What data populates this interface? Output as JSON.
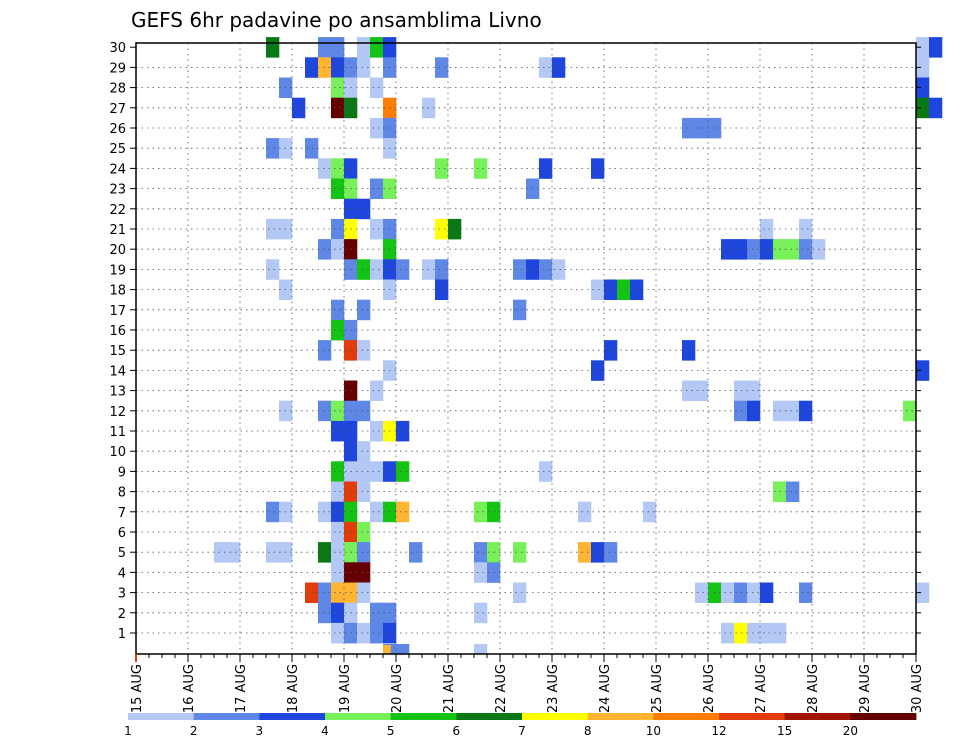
{
  "chart_data": {
    "type": "heatmap",
    "title": "GEFS 6hr padavine po ansamblima Livno",
    "xlabel": "",
    "ylabel": "",
    "x_ticks": [
      "15 AUG",
      "16 AUG",
      "17 AUG",
      "18 AUG",
      "19 AUG",
      "20 AUG",
      "21 AUG",
      "22 AUG",
      "23 AUG",
      "24 AUG",
      "25 AUG",
      "26 AUG",
      "27 AUG",
      "28 AUG",
      "29 AUG",
      "30 AUG"
    ],
    "y_ticks": [
      1,
      2,
      3,
      4,
      5,
      6,
      7,
      8,
      9,
      10,
      11,
      12,
      13,
      14,
      15,
      16,
      17,
      18,
      19,
      20,
      21,
      22,
      23,
      24,
      25,
      26,
      27,
      28,
      29,
      30
    ],
    "xlim": [
      "15 AUG",
      "30 AUG"
    ],
    "ylim": [
      0,
      30
    ],
    "grid": true,
    "legend": {
      "placement": "bottom",
      "labels": [
        "1",
        "2",
        "3",
        "4",
        "5",
        "6",
        "7",
        "8",
        "10",
        "12",
        "15",
        "20"
      ],
      "colors": [
        "#b4c8f5",
        "#5f87e6",
        "#1e46dc",
        "#78f05a",
        "#14c314",
        "#0a7814",
        "#ffff00",
        "#ffb432",
        "#ff7d00",
        "#e13c0a",
        "#a01400",
        "#640000"
      ]
    },
    "value_unit": "color class index 0-11 (1,2,3,4,5,6,7,8,10,12,15,20+ mm)",
    "time_step_hours": 6,
    "cells": [
      [
        30,
        "17 AUG 12Z",
        5
      ],
      [
        30,
        "18 AUG 12Z",
        1
      ],
      [
        30,
        "18 AUG 18Z",
        1
      ],
      [
        30,
        "19 AUG 06Z",
        0
      ],
      [
        30,
        "19 AUG 12Z",
        4
      ],
      [
        30,
        "19 AUG 18Z",
        2
      ],
      [
        30,
        "30 AUG 00Z",
        0
      ],
      [
        30,
        "30 AUG 06Z",
        2
      ],
      [
        29,
        "18 AUG 06Z",
        2
      ],
      [
        29,
        "18 AUG 12Z",
        7
      ],
      [
        29,
        "18 AUG 18Z",
        2
      ],
      [
        29,
        "19 AUG 00Z",
        1
      ],
      [
        29,
        "19 AUG 06Z",
        0
      ],
      [
        29,
        "19 AUG 18Z",
        1
      ],
      [
        29,
        "20 AUG 18Z",
        1
      ],
      [
        29,
        "22 AUG 18Z",
        0
      ],
      [
        29,
        "23 AUG 00Z",
        2
      ],
      [
        29,
        "30 AUG 00Z",
        0
      ],
      [
        28,
        "17 AUG 18Z",
        1
      ],
      [
        28,
        "18 AUG 18Z",
        3
      ],
      [
        28,
        "19 AUG 00Z",
        0
      ],
      [
        28,
        "19 AUG 12Z",
        0
      ],
      [
        28,
        "30 AUG 00Z",
        2
      ],
      [
        27,
        "18 AUG 00Z",
        2
      ],
      [
        27,
        "18 AUG 18Z",
        11
      ],
      [
        27,
        "19 AUG 00Z",
        5
      ],
      [
        27,
        "19 AUG 18Z",
        8
      ],
      [
        27,
        "20 AUG 12Z",
        0
      ],
      [
        27,
        "30 AUG 00Z",
        5
      ],
      [
        27,
        "30 AUG 06Z",
        2
      ],
      [
        26,
        "19 AUG 12Z",
        0
      ],
      [
        26,
        "19 AUG 18Z",
        1
      ],
      [
        26,
        "25 AUG 12Z",
        1
      ],
      [
        26,
        "25 AUG 18Z",
        1
      ],
      [
        26,
        "26 AUG 00Z",
        1
      ],
      [
        25,
        "17 AUG 12Z",
        1
      ],
      [
        25,
        "17 AUG 18Z",
        0
      ],
      [
        25,
        "18 AUG 06Z",
        1
      ],
      [
        25,
        "19 AUG 18Z",
        0
      ],
      [
        24,
        "18 AUG 12Z",
        0
      ],
      [
        24,
        "18 AUG 18Z",
        3
      ],
      [
        24,
        "19 AUG 00Z",
        2
      ],
      [
        24,
        "20 AUG 18Z",
        3
      ],
      [
        24,
        "21 AUG 12Z",
        3
      ],
      [
        24,
        "22 AUG 18Z",
        2
      ],
      [
        24,
        "23 AUG 18Z",
        2
      ],
      [
        23,
        "18 AUG 18Z",
        4
      ],
      [
        23,
        "19 AUG 00Z",
        3
      ],
      [
        23,
        "19 AUG 12Z",
        1
      ],
      [
        23,
        "19 AUG 18Z",
        3
      ],
      [
        23,
        "22 AUG 12Z",
        1
      ],
      [
        22,
        "19 AUG 00Z",
        2
      ],
      [
        22,
        "19 AUG 06Z",
        2
      ],
      [
        21,
        "17 AUG 12Z",
        0
      ],
      [
        21,
        "17 AUG 18Z",
        0
      ],
      [
        21,
        "18 AUG 18Z",
        1
      ],
      [
        21,
        "19 AUG 00Z",
        6
      ],
      [
        21,
        "19 AUG 12Z",
        0
      ],
      [
        21,
        "19 AUG 18Z",
        1
      ],
      [
        21,
        "20 AUG 18Z",
        6
      ],
      [
        21,
        "21 AUG 00Z",
        5
      ],
      [
        21,
        "27 AUG 00Z",
        0
      ],
      [
        21,
        "27 AUG 18Z",
        0
      ],
      [
        20,
        "18 AUG 12Z",
        1
      ],
      [
        20,
        "18 AUG 18Z",
        0
      ],
      [
        20,
        "19 AUG 00Z",
        11
      ],
      [
        20,
        "19 AUG 18Z",
        4
      ],
      [
        20,
        "26 AUG 06Z",
        2
      ],
      [
        20,
        "26 AUG 12Z",
        2
      ],
      [
        20,
        "26 AUG 18Z",
        1
      ],
      [
        20,
        "27 AUG 00Z",
        2
      ],
      [
        20,
        "27 AUG 06Z",
        3
      ],
      [
        20,
        "27 AUG 12Z",
        3
      ],
      [
        20,
        "27 AUG 18Z",
        1
      ],
      [
        20,
        "28 AUG 00Z",
        0
      ],
      [
        19,
        "17 AUG 12Z",
        0
      ],
      [
        19,
        "19 AUG 00Z",
        1
      ],
      [
        19,
        "19 AUG 06Z",
        4
      ],
      [
        19,
        "19 AUG 12Z",
        0
      ],
      [
        19,
        "19 AUG 18Z",
        2
      ],
      [
        19,
        "20 AUG 00Z",
        1
      ],
      [
        19,
        "20 AUG 12Z",
        0
      ],
      [
        19,
        "20 AUG 18Z",
        1
      ],
      [
        19,
        "22 AUG 06Z",
        1
      ],
      [
        19,
        "22 AUG 12Z",
        2
      ],
      [
        19,
        "22 AUG 18Z",
        1
      ],
      [
        19,
        "23 AUG 00Z",
        0
      ],
      [
        18,
        "17 AUG 18Z",
        0
      ],
      [
        18,
        "19 AUG 18Z",
        0
      ],
      [
        18,
        "20 AUG 18Z",
        2
      ],
      [
        18,
        "23 AUG 18Z",
        0
      ],
      [
        18,
        "24 AUG 00Z",
        2
      ],
      [
        18,
        "24 AUG 06Z",
        4
      ],
      [
        18,
        "24 AUG 12Z",
        2
      ],
      [
        17,
        "18 AUG 18Z",
        1
      ],
      [
        17,
        "19 AUG 06Z",
        1
      ],
      [
        17,
        "22 AUG 06Z",
        1
      ],
      [
        16,
        "18 AUG 18Z",
        4
      ],
      [
        16,
        "19 AUG 00Z",
        1
      ],
      [
        15,
        "18 AUG 12Z",
        1
      ],
      [
        15,
        "19 AUG 00Z",
        9
      ],
      [
        15,
        "19 AUG 06Z",
        0
      ],
      [
        15,
        "24 AUG 00Z",
        2
      ],
      [
        15,
        "25 AUG 12Z",
        2
      ],
      [
        14,
        "19 AUG 18Z",
        0
      ],
      [
        14,
        "23 AUG 18Z",
        2
      ],
      [
        14,
        "30 AUG 00Z",
        2
      ],
      [
        13,
        "19 AUG 00Z",
        11
      ],
      [
        13,
        "19 AUG 12Z",
        0
      ],
      [
        13,
        "25 AUG 12Z",
        0
      ],
      [
        13,
        "25 AUG 18Z",
        0
      ],
      [
        13,
        "26 AUG 12Z",
        0
      ],
      [
        13,
        "26 AUG 18Z",
        0
      ],
      [
        12,
        "17 AUG 18Z",
        0
      ],
      [
        12,
        "18 AUG 12Z",
        1
      ],
      [
        12,
        "18 AUG 18Z",
        3
      ],
      [
        12,
        "19 AUG 00Z",
        1
      ],
      [
        12,
        "19 AUG 06Z",
        1
      ],
      [
        12,
        "26 AUG 12Z",
        1
      ],
      [
        12,
        "26 AUG 18Z",
        2
      ],
      [
        12,
        "27 AUG 06Z",
        0
      ],
      [
        12,
        "27 AUG 12Z",
        0
      ],
      [
        12,
        "27 AUG 18Z",
        2
      ],
      [
        12,
        "29 AUG 18Z",
        3
      ],
      [
        11,
        "18 AUG 18Z",
        2
      ],
      [
        11,
        "19 AUG 00Z",
        2
      ],
      [
        11,
        "19 AUG 12Z",
        0
      ],
      [
        11,
        "19 AUG 18Z",
        6
      ],
      [
        11,
        "20 AUG 00Z",
        2
      ],
      [
        10,
        "19 AUG 00Z",
        2
      ],
      [
        10,
        "19 AUG 06Z",
        0
      ],
      [
        9,
        "18 AUG 18Z",
        4
      ],
      [
        9,
        "19 AUG 00Z",
        0
      ],
      [
        9,
        "19 AUG 06Z",
        0
      ],
      [
        9,
        "19 AUG 12Z",
        0
      ],
      [
        9,
        "19 AUG 18Z",
        2
      ],
      [
        9,
        "20 AUG 00Z",
        4
      ],
      [
        9,
        "22 AUG 18Z",
        0
      ],
      [
        8,
        "18 AUG 18Z",
        0
      ],
      [
        8,
        "19 AUG 00Z",
        9
      ],
      [
        8,
        "19 AUG 06Z",
        0
      ],
      [
        8,
        "27 AUG 06Z",
        3
      ],
      [
        8,
        "27 AUG 12Z",
        1
      ],
      [
        7,
        "17 AUG 12Z",
        1
      ],
      [
        7,
        "17 AUG 18Z",
        0
      ],
      [
        7,
        "18 AUG 12Z",
        0
      ],
      [
        7,
        "18 AUG 18Z",
        2
      ],
      [
        7,
        "19 AUG 00Z",
        4
      ],
      [
        7,
        "19 AUG 12Z",
        0
      ],
      [
        7,
        "19 AUG 18Z",
        4
      ],
      [
        7,
        "20 AUG 00Z",
        7
      ],
      [
        7,
        "21 AUG 12Z",
        3
      ],
      [
        7,
        "21 AUG 18Z",
        4
      ],
      [
        7,
        "23 AUG 12Z",
        0
      ],
      [
        7,
        "24 AUG 18Z",
        0
      ],
      [
        6,
        "18 AUG 18Z",
        0
      ],
      [
        6,
        "19 AUG 00Z",
        9
      ],
      [
        6,
        "19 AUG 06Z",
        3
      ],
      [
        5,
        "16 AUG 12Z",
        0
      ],
      [
        5,
        "16 AUG 18Z",
        0
      ],
      [
        5,
        "17 AUG 12Z",
        0
      ],
      [
        5,
        "17 AUG 18Z",
        0
      ],
      [
        5,
        "18 AUG 12Z",
        5
      ],
      [
        5,
        "18 AUG 18Z",
        0
      ],
      [
        5,
        "19 AUG 00Z",
        3
      ],
      [
        5,
        "19 AUG 06Z",
        1
      ],
      [
        5,
        "20 AUG 06Z",
        1
      ],
      [
        5,
        "21 AUG 12Z",
        1
      ],
      [
        5,
        "21 AUG 18Z",
        3
      ],
      [
        5,
        "22 AUG 06Z",
        3
      ],
      [
        5,
        "23 AUG 12Z",
        7
      ],
      [
        5,
        "23 AUG 18Z",
        2
      ],
      [
        5,
        "24 AUG 00Z",
        1
      ],
      [
        4,
        "18 AUG 18Z",
        0
      ],
      [
        4,
        "19 AUG 00Z",
        11
      ],
      [
        4,
        "19 AUG 06Z",
        11
      ],
      [
        4,
        "21 AUG 12Z",
        0
      ],
      [
        4,
        "21 AUG 18Z",
        1
      ],
      [
        3,
        "18 AUG 06Z",
        9
      ],
      [
        3,
        "18 AUG 12Z",
        1
      ],
      [
        3,
        "18 AUG 18Z",
        7
      ],
      [
        3,
        "19 AUG 00Z",
        7
      ],
      [
        3,
        "19 AUG 06Z",
        0
      ],
      [
        3,
        "22 AUG 06Z",
        0
      ],
      [
        3,
        "25 AUG 18Z",
        0
      ],
      [
        3,
        "26 AUG 00Z",
        4
      ],
      [
        3,
        "26 AUG 06Z",
        0
      ],
      [
        3,
        "26 AUG 12Z",
        1
      ],
      [
        3,
        "26 AUG 18Z",
        0
      ],
      [
        3,
        "27 AUG 00Z",
        2
      ],
      [
        3,
        "27 AUG 18Z",
        1
      ],
      [
        3,
        "30 AUG 00Z",
        0
      ],
      [
        2,
        "18 AUG 12Z",
        1
      ],
      [
        2,
        "18 AUG 18Z",
        2
      ],
      [
        2,
        "19 AUG 00Z",
        0
      ],
      [
        2,
        "19 AUG 12Z",
        1
      ],
      [
        2,
        "19 AUG 18Z",
        1
      ],
      [
        2,
        "21 AUG 12Z",
        0
      ],
      [
        1,
        "18 AUG 18Z",
        0
      ],
      [
        1,
        "19 AUG 00Z",
        1
      ],
      [
        1,
        "19 AUG 06Z",
        0
      ],
      [
        1,
        "19 AUG 12Z",
        1
      ],
      [
        1,
        "19 AUG 18Z",
        2
      ],
      [
        1,
        "26 AUG 06Z",
        0
      ],
      [
        1,
        "26 AUG 12Z",
        6
      ],
      [
        1,
        "26 AUG 18Z",
        0
      ],
      [
        1,
        "27 AUG 00Z",
        0
      ],
      [
        1,
        "27 AUG 06Z",
        0
      ]
    ],
    "below_axis": [
      [
        "19 AUG 18Z",
        1
      ],
      [
        "20 AUG 00Z",
        1
      ],
      [
        "21 AUG 12Z",
        0
      ]
    ],
    "below_axis_late": [
      [
        "19 AUG 00Z",
        7
      ]
    ]
  }
}
